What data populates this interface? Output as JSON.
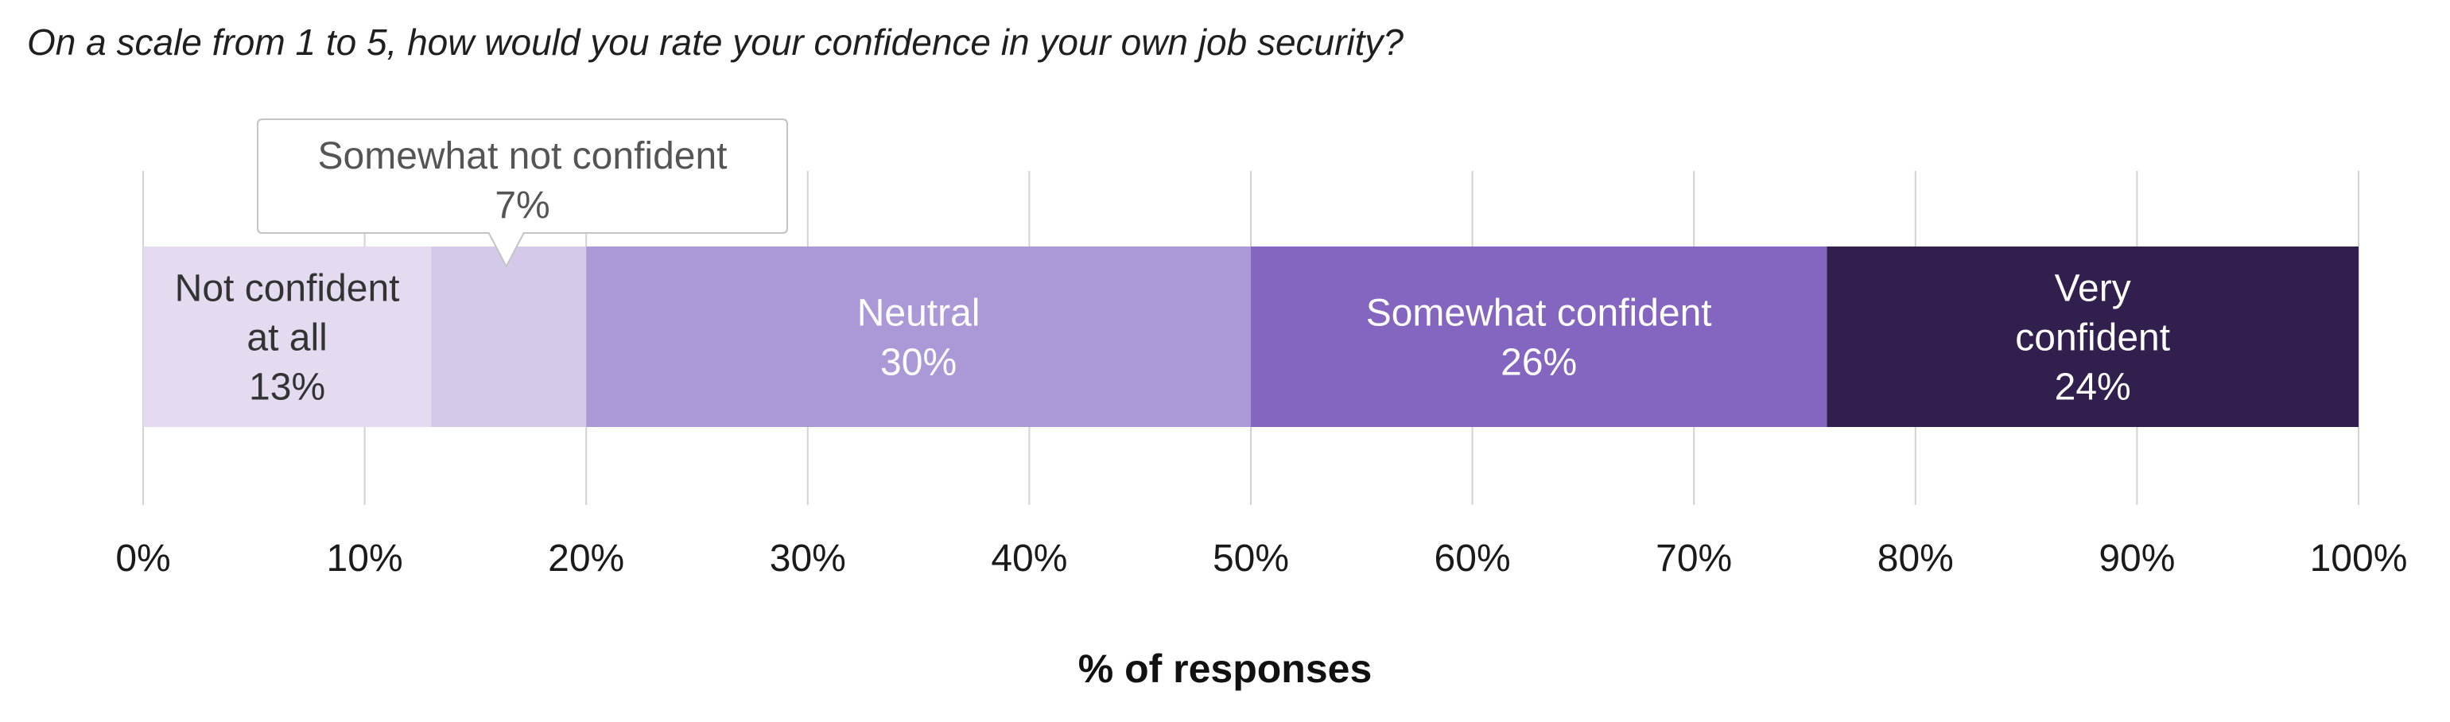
{
  "title": "On a scale from 1 to 5, how would you rate your confidence in your own job security?",
  "chart_data": {
    "type": "bar",
    "orientation": "horizontal-stacked",
    "xlabel": "% of responses",
    "xlim": [
      0,
      100
    ],
    "x_ticks": [
      "0%",
      "10%",
      "20%",
      "30%",
      "40%",
      "50%",
      "60%",
      "70%",
      "80%",
      "90%",
      "100%"
    ],
    "grid": true,
    "series": [
      {
        "name": "Not confident at all",
        "label_lines": [
          "Not confident",
          "at all"
        ],
        "value": 13,
        "value_label": "13%",
        "color": "#e4dbf0",
        "text_color": "#333333"
      },
      {
        "name": "Somewhat not confident",
        "label_lines": [
          "Somewhat not confident"
        ],
        "value": 7,
        "value_label": "7%",
        "color": "#d5c9e9",
        "text_color": "#555555",
        "callout": true
      },
      {
        "name": "Neutral",
        "label_lines": [
          "Neutral"
        ],
        "value": 30,
        "value_label": "30%",
        "color": "#ab98d6",
        "text_color": "#ffffff"
      },
      {
        "name": "Somewhat confident",
        "label_lines": [
          "Somewhat confident"
        ],
        "value": 26,
        "value_label": "26%",
        "color": "#8465c0",
        "text_color": "#ffffff"
      },
      {
        "name": "Very confident",
        "label_lines": [
          "Very",
          "confident"
        ],
        "value": 24,
        "value_label": "24%",
        "color": "#31204d",
        "text_color": "#ffffff"
      }
    ]
  }
}
